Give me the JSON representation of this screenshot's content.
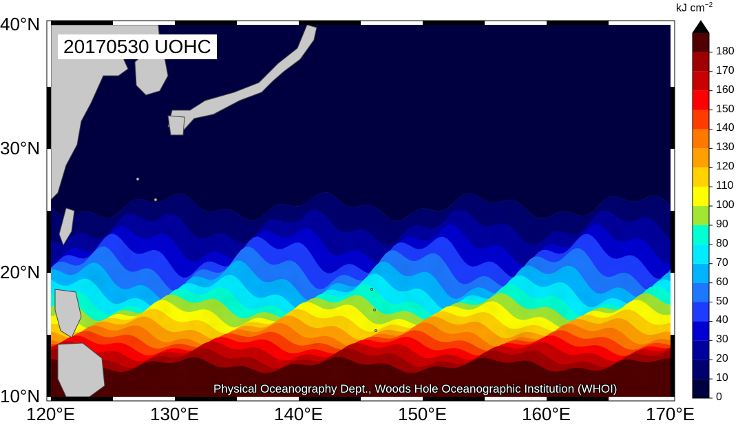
{
  "title": "20170530 UOHC",
  "credit": "Physical Oceanography Dept., Woods Hole Oceanographic Institution (WHOI)",
  "colorbar": {
    "units_base": "kJ cm",
    "units_exp": "−2",
    "ticks": [
      "0",
      "10",
      "20",
      "30",
      "40",
      "50",
      "60",
      "70",
      "80",
      "90",
      "100",
      "110",
      "120",
      "130",
      "140",
      "150",
      "160",
      "170",
      "180"
    ],
    "colors": [
      "#000040",
      "#00006e",
      "#00009e",
      "#0000d2",
      "#1e3cff",
      "#1e78ff",
      "#00b4ff",
      "#00ebff",
      "#00ffd2",
      "#a0e632",
      "#ffff00",
      "#ffd200",
      "#ffa000",
      "#ff7800",
      "#ff3c00",
      "#ff0000",
      "#c80000",
      "#a00000",
      "#500000",
      "#000000"
    ]
  },
  "map": {
    "lon_ticks": [
      "120°E",
      "130°E",
      "140°E",
      "150°E",
      "160°E",
      "170°E"
    ],
    "lat_ticks": [
      "40°N",
      "30°N",
      "20°N",
      "10°N"
    ],
    "lon_range": [
      120,
      170
    ],
    "lat_range": [
      10,
      40
    ],
    "land_color": "#c8c8c8"
  }
}
